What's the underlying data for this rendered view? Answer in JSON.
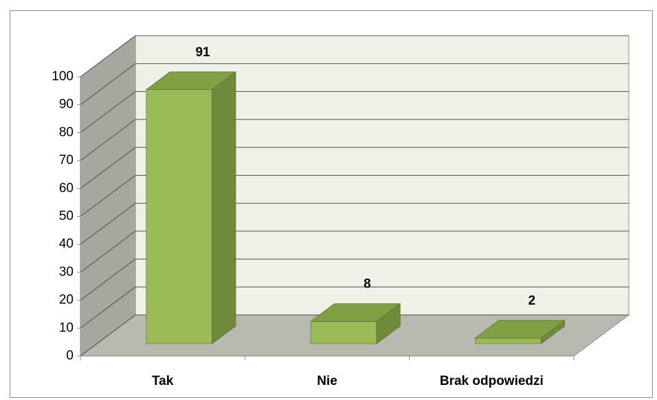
{
  "chart_data": {
    "type": "bar",
    "categories": [
      "Tak",
      "Nie",
      "Brak odpowiedzi"
    ],
    "values": [
      91,
      8,
      2
    ],
    "color": "#9bbb59",
    "ylim": [
      0,
      100
    ],
    "yticks": [
      0,
      10,
      20,
      30,
      40,
      50,
      60,
      70,
      80,
      90,
      100
    ],
    "grid": true
  }
}
